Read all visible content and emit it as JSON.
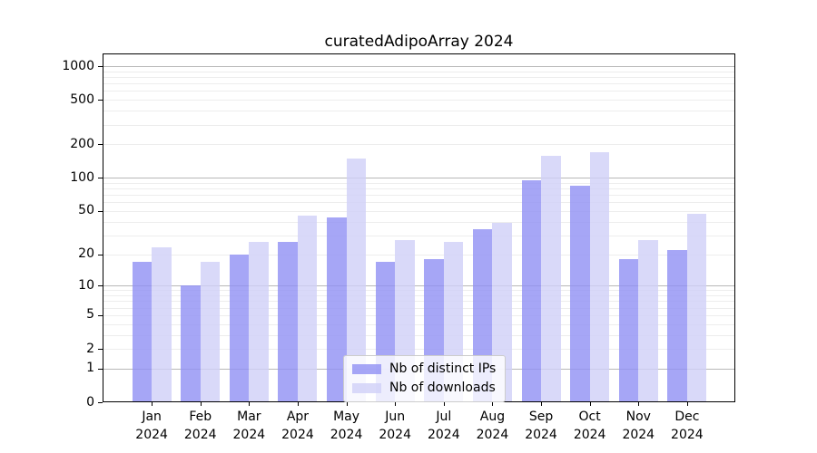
{
  "chart_data": {
    "type": "bar",
    "title": "curatedAdipoArray 2024",
    "categories": [
      "Jan 2024",
      "Feb 2024",
      "Mar 2024",
      "Apr 2024",
      "May 2024",
      "Jun 2024",
      "Jul 2024",
      "Aug 2024",
      "Sep 2024",
      "Oct 2024",
      "Nov 2024",
      "Dec 2024"
    ],
    "month_labels": [
      "Jan",
      "Feb",
      "Mar",
      "Apr",
      "May",
      "Jun",
      "Jul",
      "Aug",
      "Sep",
      "Oct",
      "Nov",
      "Dec"
    ],
    "year_label": "2024",
    "series": [
      {
        "name": "Nb of distinct IPs",
        "color": "#9090f4",
        "rendered_color": "#a6a6f6",
        "values": [
          17,
          10,
          20,
          26,
          44,
          17,
          18,
          34,
          95,
          84,
          18,
          22
        ]
      },
      {
        "name": "Nb of downloads",
        "color": "#d0d0f8",
        "rendered_color": "#dadaf9",
        "values": [
          23,
          17,
          26,
          45,
          150,
          27,
          26,
          39,
          158,
          170,
          27,
          47
        ]
      }
    ],
    "xlabel": "",
    "ylabel": "",
    "y_scale": "log1p",
    "ylim": [
      0,
      1300
    ],
    "y_ticks": [
      0,
      1,
      2,
      5,
      10,
      20,
      50,
      100,
      200,
      500,
      1000
    ],
    "y_major_gridlines": [
      1,
      10,
      100,
      1000
    ],
    "y_minor_gridlines": [
      2,
      3,
      4,
      5,
      6,
      7,
      8,
      9,
      20,
      30,
      40,
      50,
      60,
      70,
      80,
      90,
      200,
      300,
      400,
      500,
      600,
      700,
      800,
      900
    ],
    "grid": true,
    "legend_position": "lower center"
  }
}
